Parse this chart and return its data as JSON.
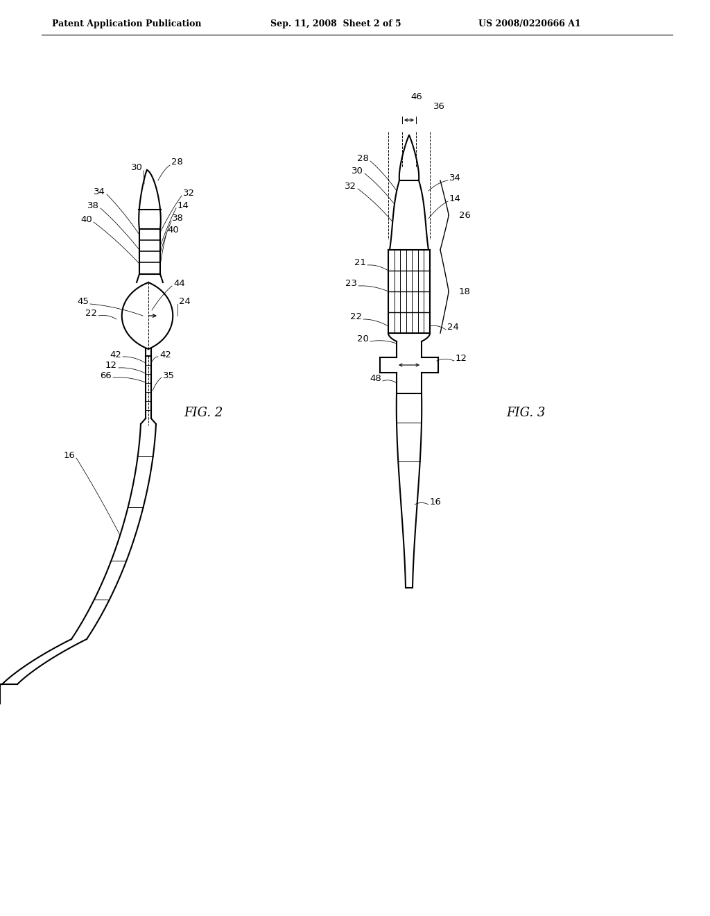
{
  "background_color": "#ffffff",
  "header_left": "Patent Application Publication",
  "header_center": "Sep. 11, 2008  Sheet 2 of 5",
  "header_right": "US 2008/0220666 A1",
  "fig2_label": "FIG. 2",
  "fig3_label": "FIG. 3",
  "line_color": "#000000",
  "line_width": 1.5,
  "label_fontsize": 9.5,
  "header_fontsize": 9,
  "fig_label_fontsize": 13
}
